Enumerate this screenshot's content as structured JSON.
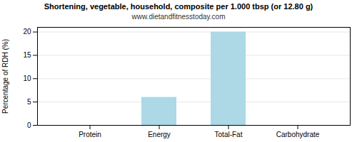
{
  "chart_data": {
    "type": "bar",
    "title": "Shortening, vegetable, household, composite per 1.000 tbsp (or 12.80 g)",
    "subtitle": "www.dietandfitnesstoday.com",
    "categories": [
      "Protein",
      "Energy",
      "Total-Fat",
      "Carbohydrate"
    ],
    "values": [
      0,
      6,
      20,
      0
    ],
    "color": "#add8e6",
    "ylabel": "Percentage of RDH (%)",
    "ylim": [
      0,
      21
    ],
    "yticks": [
      0,
      5,
      10,
      15,
      20
    ],
    "grid": true
  }
}
